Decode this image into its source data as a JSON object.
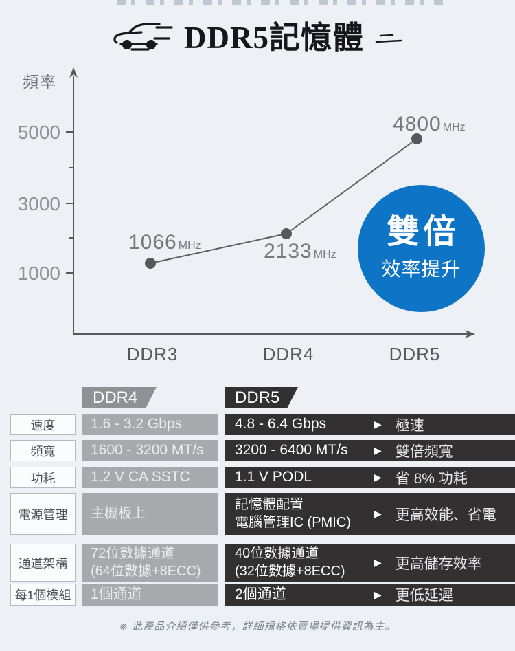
{
  "header": {
    "title": "DDR5記憶體"
  },
  "icons": {
    "car": "car-icon",
    "speed_dashes": "speed-dashes-icon",
    "benefit_arrow": "▶"
  },
  "chart": {
    "ylabel": "頻率",
    "yticks": [
      "5000",
      "3000",
      "1000"
    ],
    "categories": [
      "DDR3",
      "DDR4",
      "DDR5"
    ],
    "points": [
      {
        "value": "1066",
        "unit": "MHz"
      },
      {
        "value": "2133",
        "unit": "MHz"
      },
      {
        "value": "4800",
        "unit": "MHz"
      }
    ],
    "badge": {
      "line1": "雙倍",
      "line2": "效率提升",
      "color": "#0e74c5"
    }
  },
  "chart_data": {
    "type": "line",
    "title": "DDR5記憶體",
    "categories": [
      "DDR3",
      "DDR4",
      "DDR5"
    ],
    "values": [
      1066,
      2133,
      4800
    ],
    "unit": "MHz",
    "xlabel": "",
    "ylabel": "頻率",
    "yticks": [
      1000,
      3000,
      5000
    ],
    "ylim": [
      0,
      5800
    ],
    "grid": false,
    "legend": false,
    "annotation": "雙倍效率提升"
  },
  "table": {
    "columns": [
      "DDR4",
      "DDR5"
    ],
    "rows": [
      {
        "label": "速度",
        "ddr4": "1.6 - 3.2 Gbps",
        "ddr5": "4.8 - 6.4 Gbps",
        "benefit": "極速"
      },
      {
        "label": "頻寬",
        "ddr4": "1600 - 3200 MT/s",
        "ddr5": "3200 - 6400 MT/s",
        "benefit": "雙倍頻寬"
      },
      {
        "label": "功耗",
        "ddr4": "1.2 V CA SSTC",
        "ddr5": "1.1 V PODL",
        "benefit": "省 8% 功耗"
      },
      {
        "label": "電源管理",
        "ddr4": "主機板上",
        "ddr5": "記憶體配置\n電腦管理IC (PMIC)",
        "benefit": "更高效能、省電"
      },
      {
        "label": "通道架構",
        "ddr4": "72位數據通道\n(64位數據+8ECC)",
        "ddr5": "40位數據通道\n(32位數據+8ECC)",
        "benefit": "更高儲存效率"
      },
      {
        "label": "每1個模組",
        "ddr4": "1個通道",
        "ddr5": "2個通道",
        "benefit": "更低延遲"
      }
    ]
  },
  "footer": {
    "note": "※ 此產品介紹僅供參考，詳細規格依賣場提供資訊為主。"
  },
  "colors": {
    "background": "#edf0f5",
    "badge_blue": "#0e74c5",
    "ddr4_gray": "#a7a9ac",
    "ddr4_tab": "#8f9295",
    "ddr5_dark": "#333032",
    "line_gray": "#55585d"
  }
}
